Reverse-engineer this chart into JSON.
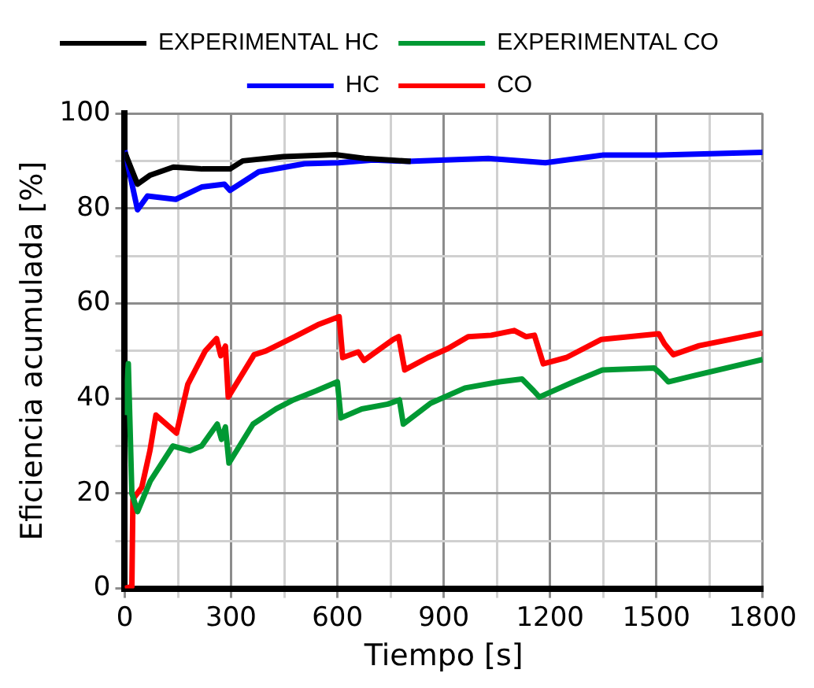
{
  "chart_data": {
    "type": "line",
    "xlabel": "Tiempo [s]",
    "ylabel": "Eficiencia acumulada [%]",
    "xlim": [
      0,
      1800
    ],
    "ylim": [
      0,
      100
    ],
    "xticks": [
      0,
      {
        "value": 150,
        "label": null
      },
      300,
      {
        "value": 450,
        "label": null
      },
      600,
      {
        "value": 750,
        "label": null
      },
      900,
      {
        "value": 1050,
        "label": null
      },
      1200,
      {
        "value": 1350,
        "label": null
      },
      1500,
      {
        "value": 1650,
        "label": null
      },
      1800
    ],
    "yticks": [
      0,
      {
        "value": 10,
        "label": null
      },
      20,
      {
        "value": 30,
        "label": null
      },
      40,
      {
        "value": 50,
        "label": null
      },
      60,
      {
        "value": 70,
        "label": null
      },
      80,
      {
        "value": 90,
        "label": null
      },
      100
    ],
    "grid": true,
    "legend": "top",
    "marker": "none",
    "line_style": "solid",
    "series": [
      {
        "name": "EXPERIMENTAL HC",
        "color": "#000000",
        "x": [
          0,
          36,
          72,
          137,
          219,
          297,
          333,
          447,
          594,
          676,
          807
        ],
        "values": [
          91.8,
          85.1,
          87,
          88.7,
          88.3,
          88.3,
          90,
          90.9,
          91.3,
          90.5,
          89.9
        ]
      },
      {
        "name": "EXPERIMENTAL CO",
        "color": "#009933",
        "x": [
          0,
          10,
          20,
          36,
          72,
          136,
          184,
          217,
          261,
          273,
          284,
          294,
          362,
          427,
          476,
          540,
          600,
          610,
          669,
          742,
          775,
          786,
          863,
          960,
          1058,
          1121,
          1154,
          1170,
          1267,
          1348,
          1494,
          1510,
          1534,
          1607,
          1800
        ],
        "values": [
          36.5,
          47.3,
          20,
          16.2,
          22.6,
          30,
          29,
          30,
          34.6,
          31.4,
          34,
          26.4,
          34.6,
          37.8,
          39.7,
          41.6,
          43.5,
          35.9,
          37.8,
          38.8,
          39.7,
          34.6,
          39,
          42.2,
          43.5,
          44.1,
          41.6,
          40.3,
          43.5,
          46,
          46.4,
          45.4,
          43.5,
          44.8,
          48.2
        ]
      },
      {
        "name": "HC",
        "color": "#0000ff",
        "x": [
          0,
          36,
          64,
          144,
          217,
          281,
          297,
          378,
          507,
          604,
          701,
          799,
          1026,
          1187,
          1348,
          1510,
          1800
        ],
        "values": [
          92.2,
          79.7,
          82.6,
          81.9,
          84.5,
          85.1,
          83.8,
          87.7,
          89.4,
          89.6,
          90.2,
          89.9,
          90.5,
          89.6,
          91.2,
          91.2,
          91.8
        ]
      },
      {
        "name": "CO",
        "color": "#ff0000",
        "x": [
          0,
          20,
          23,
          48,
          71,
          88,
          146,
          178,
          227,
          259,
          271,
          284,
          292,
          365,
          398,
          480,
          545,
          605,
          615,
          659,
          675,
          757,
          773,
          790,
          855,
          912,
          969,
          1034,
          1099,
          1132,
          1156,
          1181,
          1246,
          1344,
          1507,
          1523,
          1548,
          1621,
          1800
        ],
        "values": [
          0,
          0.4,
          18.8,
          21.3,
          29,
          36.5,
          32.7,
          43,
          50,
          52.6,
          49,
          51,
          40.3,
          49.2,
          50,
          53,
          55.5,
          57.2,
          48.6,
          49.8,
          48,
          52.4,
          53,
          46,
          48.6,
          50.5,
          53,
          53.3,
          54.3,
          53,
          53.3,
          47.3,
          48.6,
          52.4,
          53.6,
          51.5,
          49.2,
          51.1,
          53.8
        ]
      }
    ]
  }
}
